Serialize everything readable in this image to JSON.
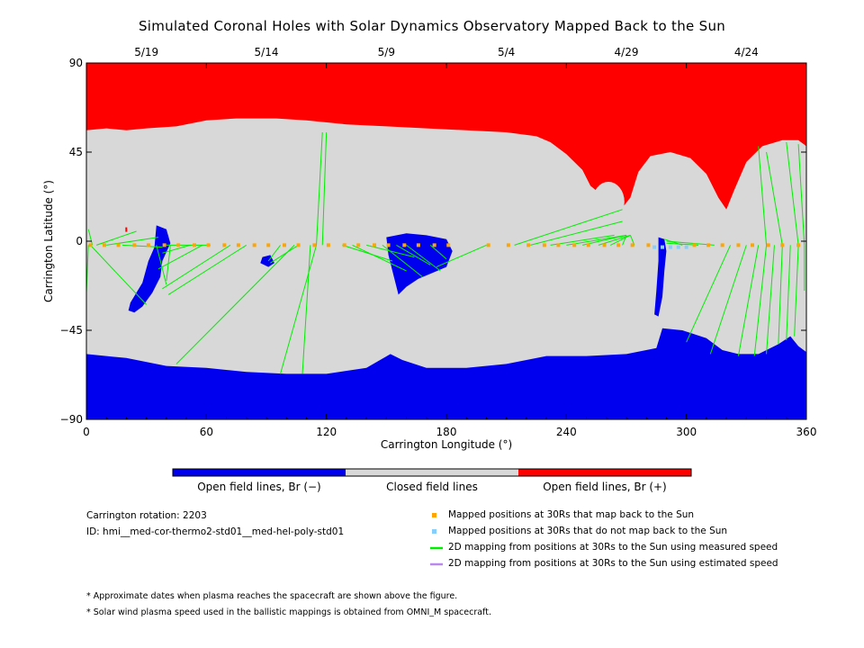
{
  "chart_data": {
    "type": "map",
    "title": "Simulated Coronal Holes with Solar Dynamics Observatory Mapped Back to the Sun",
    "xlabel": "Carrington Longitude (°)",
    "ylabel": "Carrington Latitude (°)",
    "xlim": [
      0,
      360
    ],
    "ylim": [
      -90,
      90
    ],
    "x_ticks": [
      0,
      60,
      120,
      180,
      240,
      300,
      360
    ],
    "y_ticks": [
      90,
      45,
      0,
      -45,
      -90
    ],
    "top_dates": [
      {
        "label": "5/19",
        "lon": 30
      },
      {
        "label": "5/14",
        "lon": 90
      },
      {
        "label": "5/9",
        "lon": 150
      },
      {
        "label": "5/4",
        "lon": 210
      },
      {
        "label": "4/29",
        "lon": 270
      },
      {
        "label": "4/24",
        "lon": 330
      }
    ],
    "colorbar": [
      {
        "label": "Open field lines, Br (−)",
        "color": "#0000ee"
      },
      {
        "label": "Closed field lines",
        "color": "#d8d8d8"
      },
      {
        "label": "Open field lines, Br (+)",
        "color": "#ff0000"
      }
    ],
    "north_boundary": [
      [
        0,
        56
      ],
      [
        10,
        57
      ],
      [
        20,
        56
      ],
      [
        30,
        57
      ],
      [
        45,
        58
      ],
      [
        60,
        61
      ],
      [
        75,
        62
      ],
      [
        95,
        62
      ],
      [
        110,
        61
      ],
      [
        130,
        59
      ],
      [
        150,
        58
      ],
      [
        170,
        57
      ],
      [
        190,
        56
      ],
      [
        210,
        55
      ],
      [
        225,
        53
      ],
      [
        232,
        50
      ],
      [
        240,
        44
      ],
      [
        248,
        36
      ],
      [
        252,
        28
      ],
      [
        258,
        23
      ],
      [
        262,
        26
      ],
      [
        266,
        24
      ],
      [
        268,
        17
      ],
      [
        272,
        22
      ],
      [
        276,
        35
      ],
      [
        282,
        43
      ],
      [
        292,
        45
      ],
      [
        302,
        42
      ],
      [
        310,
        34
      ],
      [
        316,
        22
      ],
      [
        320,
        16
      ],
      [
        324,
        26
      ],
      [
        330,
        40
      ],
      [
        338,
        48
      ],
      [
        348,
        51
      ],
      [
        356,
        51
      ],
      [
        360,
        48
      ]
    ],
    "south_boundary": [
      [
        0,
        -57
      ],
      [
        20,
        -59
      ],
      [
        40,
        -63
      ],
      [
        60,
        -64
      ],
      [
        80,
        -66
      ],
      [
        100,
        -67
      ],
      [
        120,
        -67
      ],
      [
        140,
        -64
      ],
      [
        152,
        -57
      ],
      [
        158,
        -60
      ],
      [
        170,
        -64
      ],
      [
        190,
        -64
      ],
      [
        210,
        -62
      ],
      [
        230,
        -58
      ],
      [
        250,
        -58
      ],
      [
        270,
        -57
      ],
      [
        285,
        -54
      ],
      [
        288,
        -44
      ],
      [
        298,
        -45
      ],
      [
        310,
        -49
      ],
      [
        318,
        -55
      ],
      [
        326,
        -57
      ],
      [
        336,
        -57
      ],
      [
        346,
        -52
      ],
      [
        352,
        -48
      ],
      [
        356,
        -53
      ],
      [
        360,
        -56
      ]
    ],
    "red_island": {
      "center": [
        261,
        20
      ],
      "radius": [
        8,
        10
      ]
    },
    "coronal_holes": [
      {
        "name": "hole-1",
        "polygon": [
          [
            35,
            8
          ],
          [
            40,
            6
          ],
          [
            42,
            -1
          ],
          [
            38,
            -10
          ],
          [
            37,
            -18
          ],
          [
            33,
            -26
          ],
          [
            28,
            -33
          ],
          [
            24,
            -36
          ],
          [
            21,
            -35
          ],
          [
            22,
            -31
          ],
          [
            28,
            -21
          ],
          [
            31,
            -10
          ],
          [
            34,
            -3
          ]
        ]
      },
      {
        "name": "hole-2",
        "polygon": [
          [
            88,
            -8
          ],
          [
            92,
            -7
          ],
          [
            94,
            -11
          ],
          [
            91,
            -13
          ],
          [
            87,
            -11
          ]
        ]
      },
      {
        "name": "hole-3",
        "polygon": [
          [
            150,
            2
          ],
          [
            160,
            4
          ],
          [
            170,
            3
          ],
          [
            180,
            1
          ],
          [
            183,
            -5
          ],
          [
            180,
            -13
          ],
          [
            173,
            -16
          ],
          [
            166,
            -19
          ],
          [
            160,
            -23
          ],
          [
            156,
            -27
          ],
          [
            153,
            -15
          ],
          [
            151,
            -7
          ]
        ]
      },
      {
        "name": "hole-4",
        "polygon": [
          [
            286,
            2
          ],
          [
            289,
            1
          ],
          [
            290,
            -5
          ],
          [
            289,
            -15
          ],
          [
            288,
            -28
          ],
          [
            286,
            -38
          ],
          [
            284,
            -37
          ],
          [
            285,
            -25
          ],
          [
            286,
            -10
          ]
        ]
      }
    ],
    "mapped_positions": {
      "lat": -2,
      "lon": [
        2,
        9,
        16,
        24,
        31,
        39,
        46,
        54,
        61,
        69,
        76,
        84,
        91,
        99,
        106,
        114,
        121,
        129,
        136,
        144,
        151,
        159,
        166,
        174,
        181,
        201,
        211,
        221,
        229,
        236,
        244,
        251,
        259,
        266,
        273,
        281,
        304,
        311,
        318,
        326,
        333,
        341,
        348,
        356
      ]
    },
    "unmapped_positions": {
      "lat": -3,
      "lon": [
        284,
        288,
        292,
        296,
        300
      ]
    },
    "mapping_lines": [
      {
        "from": [
          5,
          -2
        ],
        "to": [
          25,
          5
        ]
      },
      {
        "from": [
          2,
          -2
        ],
        "to": [
          30,
          -32
        ]
      },
      {
        "from": [
          10,
          -2
        ],
        "to": [
          36,
          2
        ]
      },
      {
        "from": [
          18,
          -2
        ],
        "to": [
          38,
          -3
        ]
      },
      {
        "from": [
          35,
          -2
        ],
        "to": [
          40,
          -22
        ]
      },
      {
        "from": [
          42,
          -2
        ],
        "to": [
          40,
          -20
        ]
      },
      {
        "from": [
          52,
          -2
        ],
        "to": [
          38,
          -6
        ]
      },
      {
        "from": [
          58,
          -2
        ],
        "to": [
          36,
          -14
        ]
      },
      {
        "from": [
          62,
          -2
        ],
        "to": [
          40,
          -2
        ]
      },
      {
        "from": [
          72,
          -2
        ],
        "to": [
          38,
          -24
        ]
      },
      {
        "from": [
          80,
          -2
        ],
        "to": [
          41,
          -27
        ]
      },
      {
        "from": [
          97,
          -2
        ],
        "to": [
          91,
          -10
        ]
      },
      {
        "from": [
          106,
          -2
        ],
        "to": [
          92,
          -11
        ]
      },
      {
        "from": [
          118,
          55
        ],
        "to": [
          115,
          -2
        ]
      },
      {
        "from": [
          120,
          55
        ],
        "to": [
          118,
          -2
        ]
      },
      {
        "from": [
          112,
          -2
        ],
        "to": [
          108,
          -67
        ]
      },
      {
        "from": [
          115,
          -2
        ],
        "to": [
          97,
          -67
        ]
      },
      {
        "from": [
          104,
          -2
        ],
        "to": [
          45,
          -62
        ]
      },
      {
        "from": [
          128,
          -2
        ],
        "to": [
          153,
          -10
        ]
      },
      {
        "from": [
          133,
          -2
        ],
        "to": [
          160,
          -15
        ]
      },
      {
        "from": [
          140,
          -2
        ],
        "to": [
          164,
          -8
        ]
      },
      {
        "from": [
          148,
          -2
        ],
        "to": [
          168,
          -18
        ]
      },
      {
        "from": [
          155,
          -2
        ],
        "to": [
          172,
          -12
        ]
      },
      {
        "from": [
          160,
          -2
        ],
        "to": [
          177,
          -15
        ]
      },
      {
        "from": [
          172,
          -2
        ],
        "to": [
          180,
          -9
        ]
      },
      {
        "from": [
          200,
          -2
        ],
        "to": [
          175,
          -13
        ]
      },
      {
        "from": [
          214,
          -2
        ],
        "to": [
          268,
          16
        ]
      },
      {
        "from": [
          222,
          -2
        ],
        "to": [
          268,
          10
        ]
      },
      {
        "from": [
          232,
          -2
        ],
        "to": [
          264,
          3
        ]
      },
      {
        "from": [
          240,
          -2
        ],
        "to": [
          270,
          3
        ]
      },
      {
        "from": [
          248,
          -2
        ],
        "to": [
          270,
          3
        ]
      },
      {
        "from": [
          256,
          -2
        ],
        "to": [
          272,
          3
        ]
      },
      {
        "from": [
          262,
          -2
        ],
        "to": [
          272,
          3
        ]
      },
      {
        "from": [
          268,
          -2
        ],
        "to": [
          270,
          3
        ]
      },
      {
        "from": [
          274,
          -2
        ],
        "to": [
          272,
          3
        ]
      },
      {
        "from": [
          298,
          -2
        ],
        "to": [
          289,
          1
        ]
      },
      {
        "from": [
          306,
          -2
        ],
        "to": [
          290,
          -1
        ]
      },
      {
        "from": [
          314,
          -2
        ],
        "to": [
          290,
          0
        ]
      },
      {
        "from": [
          322,
          -2
        ],
        "to": [
          300,
          -51
        ]
      },
      {
        "from": [
          330,
          -2
        ],
        "to": [
          312,
          -57
        ]
      },
      {
        "from": [
          336,
          -2
        ],
        "to": [
          326,
          -58
        ]
      },
      {
        "from": [
          340,
          -2
        ],
        "to": [
          334,
          -58
        ]
      },
      {
        "from": [
          344,
          -2
        ],
        "to": [
          340,
          -57
        ]
      },
      {
        "from": [
          348,
          -2
        ],
        "to": [
          346,
          -52
        ]
      },
      {
        "from": [
          352,
          -2
        ],
        "to": [
          350,
          -50
        ]
      },
      {
        "from": [
          356,
          -2
        ],
        "to": [
          354,
          -48
        ]
      },
      {
        "from": [
          359,
          -2
        ],
        "to": [
          359,
          -25
        ]
      },
      {
        "from": [
          340,
          -2
        ],
        "to": [
          336,
          48
        ]
      },
      {
        "from": [
          348,
          -2
        ],
        "to": [
          340,
          45
        ]
      },
      {
        "from": [
          356,
          -2
        ],
        "to": [
          350,
          50
        ]
      },
      {
        "from": [
          359,
          -2
        ],
        "to": [
          356,
          49
        ]
      },
      {
        "from": [
          3,
          -2
        ],
        "to": [
          1,
          6
        ]
      },
      {
        "from": [
          1,
          -2
        ],
        "to": [
          0,
          -26
        ]
      }
    ]
  },
  "info": {
    "rotation": "Carrington rotation: 2203",
    "id": "ID: hmi__med-cor-thermo2-std01__med-hel-poly-std01"
  },
  "legend": [
    {
      "label": "Mapped positions at 30Rs that map back to the Sun",
      "color": "#ffa500",
      "kind": "square"
    },
    {
      "label": "Mapped positions at 30Rs that do not map back to the Sun",
      "color": "#87cefa",
      "kind": "square"
    },
    {
      "label": "2D mapping from positions at 30Rs to the Sun using measured speed",
      "color": "#00ee00",
      "kind": "line"
    },
    {
      "label": "2D mapping from positions at 30Rs to the Sun using estimated speed",
      "color": "#bb88ee",
      "kind": "line"
    }
  ],
  "notes": [
    "* Approximate dates when plasma reaches the spacecraft are shown above the figure.",
    "* Solar wind plasma speed used in the ballistic mappings is obtained from OMNI_M spacecraft."
  ]
}
